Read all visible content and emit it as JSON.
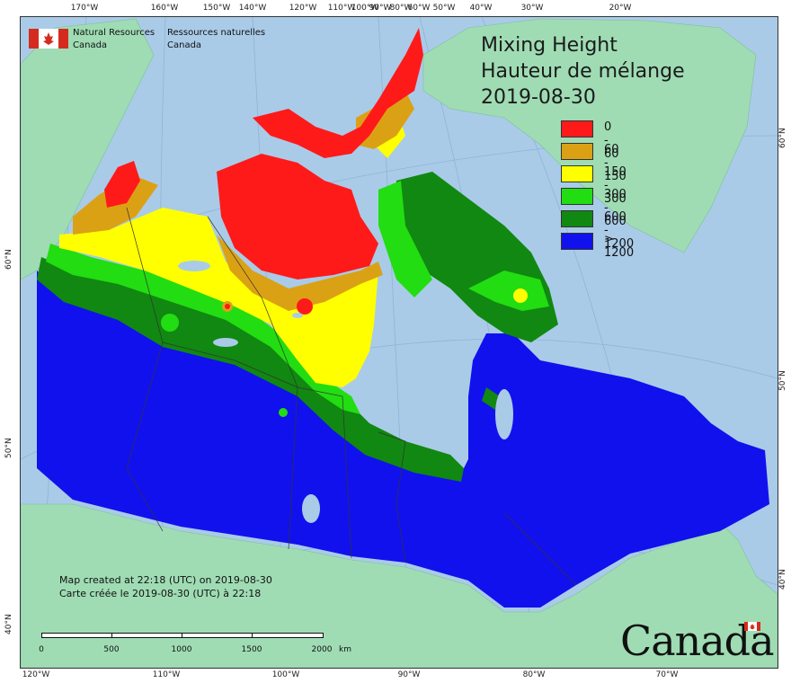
{
  "title": {
    "line1": "Mixing Height",
    "line2": "Hauteur de mélange",
    "date": "2019-08-30"
  },
  "agency": {
    "en_line1": "Natural Resources",
    "en_line2": "Canada",
    "fr_line1": "Ressources naturelles",
    "fr_line2": "Canada"
  },
  "legend": [
    {
      "label": "0 - 60",
      "color": "#ff1a1a"
    },
    {
      "label": "60 - 150",
      "color": "#dba115"
    },
    {
      "label": "150 - 300",
      "color": "#ffff00"
    },
    {
      "label": "300 - 600",
      "color": "#22dd11"
    },
    {
      "label": "600 - 1200",
      "color": "#118811"
    },
    {
      "label": "> 1200",
      "color": "#1111ee"
    }
  ],
  "colors": {
    "water": "#a9cbe8",
    "foreign_land": "#9fdcb4",
    "border_lines": "#333333"
  },
  "credit": {
    "line1": "Map created at 22:18 (UTC) on 2019-08-30",
    "line2": "Carte créée le 2019-08-30 (UTC) à 22:18"
  },
  "scale_bar": {
    "labels": [
      "0",
      "500",
      "1000",
      "1500",
      "2000"
    ],
    "unit": "km"
  },
  "wordmark": "Canada",
  "graticule": {
    "top_labels": [
      "170°W",
      "160°W",
      "150°W",
      "140°W",
      "120°W",
      "110°W",
      "100°W",
      "90°W",
      "80°W",
      "60°W",
      "50°W",
      "40°W",
      "30°W",
      "20°W"
    ],
    "bottom_labels": [
      "120°W",
      "110°W",
      "100°W",
      "90°W",
      "80°W",
      "70°W"
    ],
    "left_labels": [
      "60°N",
      "50°N",
      "40°N"
    ],
    "right_labels": [
      "60°N",
      "50°N",
      "40°N"
    ]
  }
}
